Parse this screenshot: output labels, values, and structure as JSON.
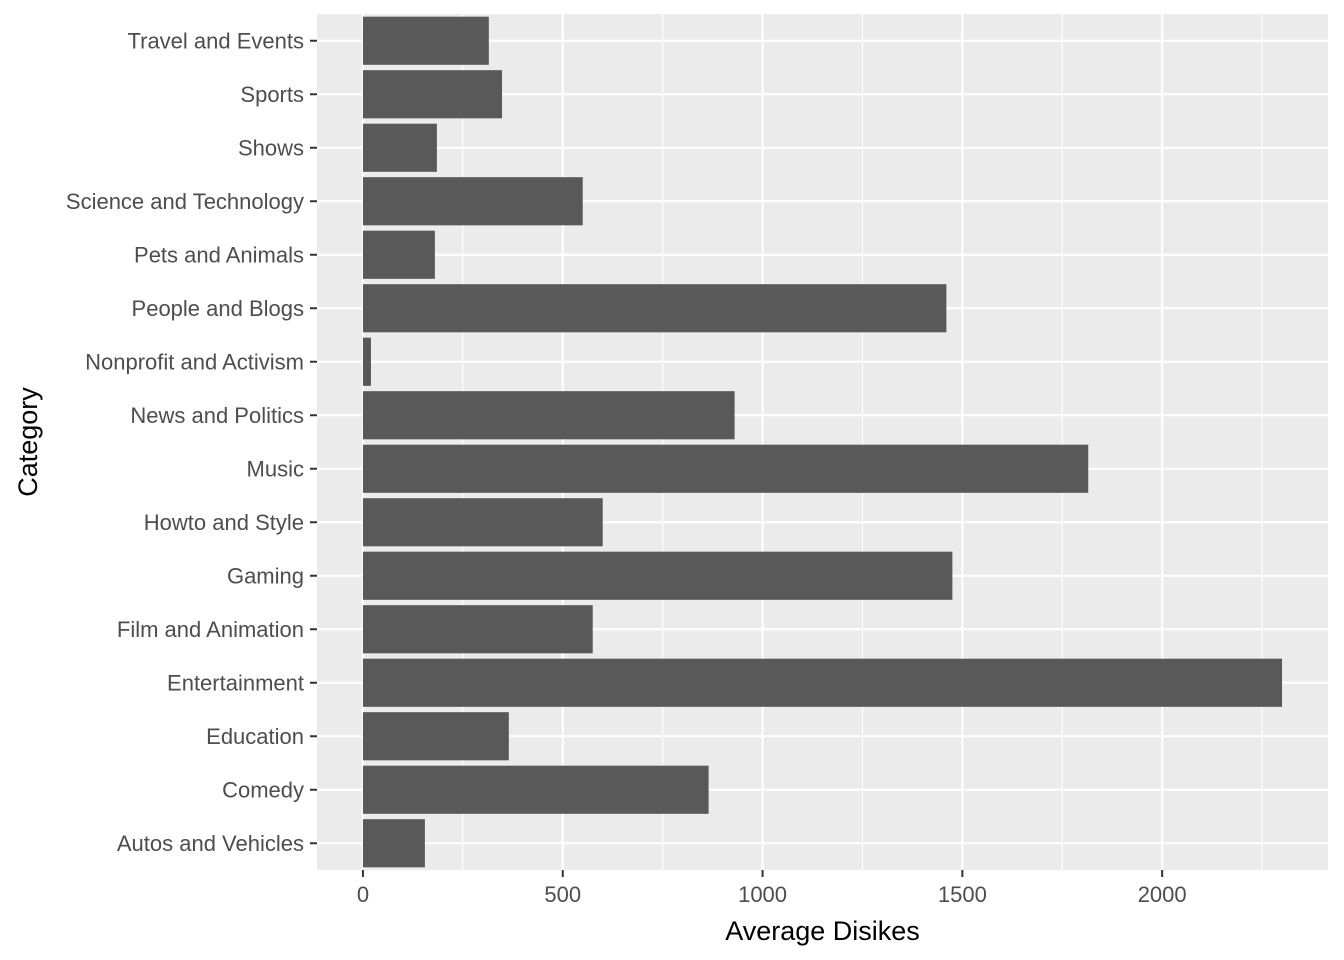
{
  "chart_data": {
    "type": "bar",
    "orientation": "horizontal",
    "categories": [
      "Autos and Vehicles",
      "Comedy",
      "Education",
      "Entertainment",
      "Film and Animation",
      "Gaming",
      "Howto and Style",
      "Music",
      "News and Politics",
      "Nonprofit and Activism",
      "People and Blogs",
      "Pets and Animals",
      "Science and Technology",
      "Shows",
      "Sports",
      "Travel and Events"
    ],
    "values": [
      155,
      865,
      365,
      2300,
      575,
      1475,
      600,
      1815,
      930,
      20,
      1460,
      180,
      550,
      185,
      348,
      315
    ],
    "xlabel": "Average Disikes",
    "ylabel": "Category",
    "xlim": [
      -115,
      2415
    ],
    "x_ticks": [
      0,
      500,
      1000,
      1500,
      2000
    ],
    "x_tick_labels": [
      "0",
      "500",
      "1000",
      "1500",
      "2000"
    ],
    "grid": true,
    "colors": {
      "bar": "#595959",
      "panel": "#ebebeb",
      "grid": "#ffffff",
      "tick_text": "#4d4d4d",
      "title_text": "#000000"
    }
  }
}
